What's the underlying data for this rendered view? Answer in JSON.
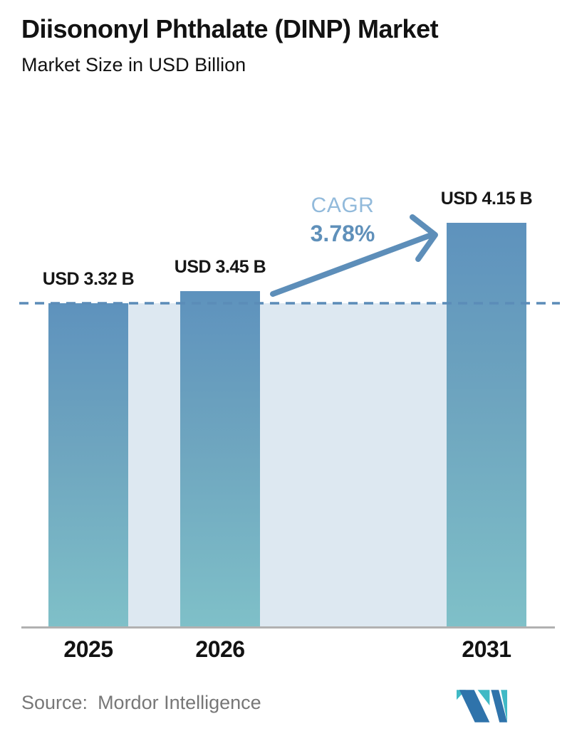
{
  "header": {
    "title": "Diisononyl Phthalate (DINP) Market",
    "subtitle": "Market Size in USD Billion"
  },
  "chart_data": {
    "type": "bar",
    "categories": [
      "2025",
      "2026",
      "2031"
    ],
    "values": [
      3.32,
      3.45,
      4.15
    ],
    "value_labels": [
      "USD 3.32 B",
      "USD 3.45 B",
      "USD 4.15 B"
    ],
    "title": "Diisononyl Phthalate (DINP) Market",
    "ylabel": "Market Size in USD Billion",
    "unit": "USD Billion",
    "ylim": [
      0,
      4.5
    ],
    "grid": false,
    "legend": "none",
    "annotations": {
      "cagr_label": "CAGR",
      "cagr_value": "3.78%",
      "arrow": "from 2026 bar top to 2031 bar top"
    },
    "reference_line": {
      "value": 3.32,
      "style": "dashed"
    },
    "colors": {
      "bar_gradient_top": "#5e92bd",
      "bar_gradient_bottom": "#7fc0c8",
      "background_band": "#dde8f1",
      "accent_blue": "#5f90ba",
      "cagr_label_blue": "#92badb",
      "baseline_gray": "#b1b1b1"
    }
  },
  "footer": {
    "source_label": "Source:",
    "source_name": "Mordor Intelligence",
    "logo": "mordor-intelligence-logo"
  }
}
